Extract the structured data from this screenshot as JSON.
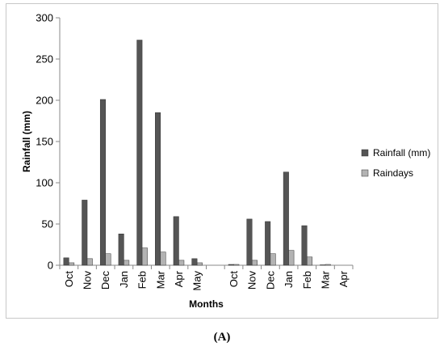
{
  "chart_data": {
    "type": "bar",
    "xlabel": "Months",
    "ylabel": "Rainfall (mm)",
    "ylim": [
      0,
      300
    ],
    "yticks": [
      0,
      50,
      100,
      150,
      200,
      250,
      300
    ],
    "grid": false,
    "legend_position": "right",
    "categories": [
      "Oct",
      "Nov",
      "Dec",
      "Jan",
      "Feb",
      "Mar",
      "Apr",
      "May",
      "",
      "Oct",
      "Nov",
      "Dec",
      "Jan",
      "Feb",
      "Mar",
      "Apr"
    ],
    "series": [
      {
        "name": "Rainfall (mm)",
        "color": "#555555",
        "values": [
          9,
          79,
          201,
          38,
          273,
          185,
          59,
          8,
          null,
          1,
          56,
          53,
          113,
          48,
          0.5,
          0
        ]
      },
      {
        "name": "Raindays",
        "color": "#b3b3b3",
        "values": [
          3,
          8,
          14,
          6,
          21,
          16,
          6,
          3,
          null,
          1,
          6,
          14,
          18,
          10,
          1,
          0
        ]
      }
    ]
  },
  "caption": "(A)"
}
